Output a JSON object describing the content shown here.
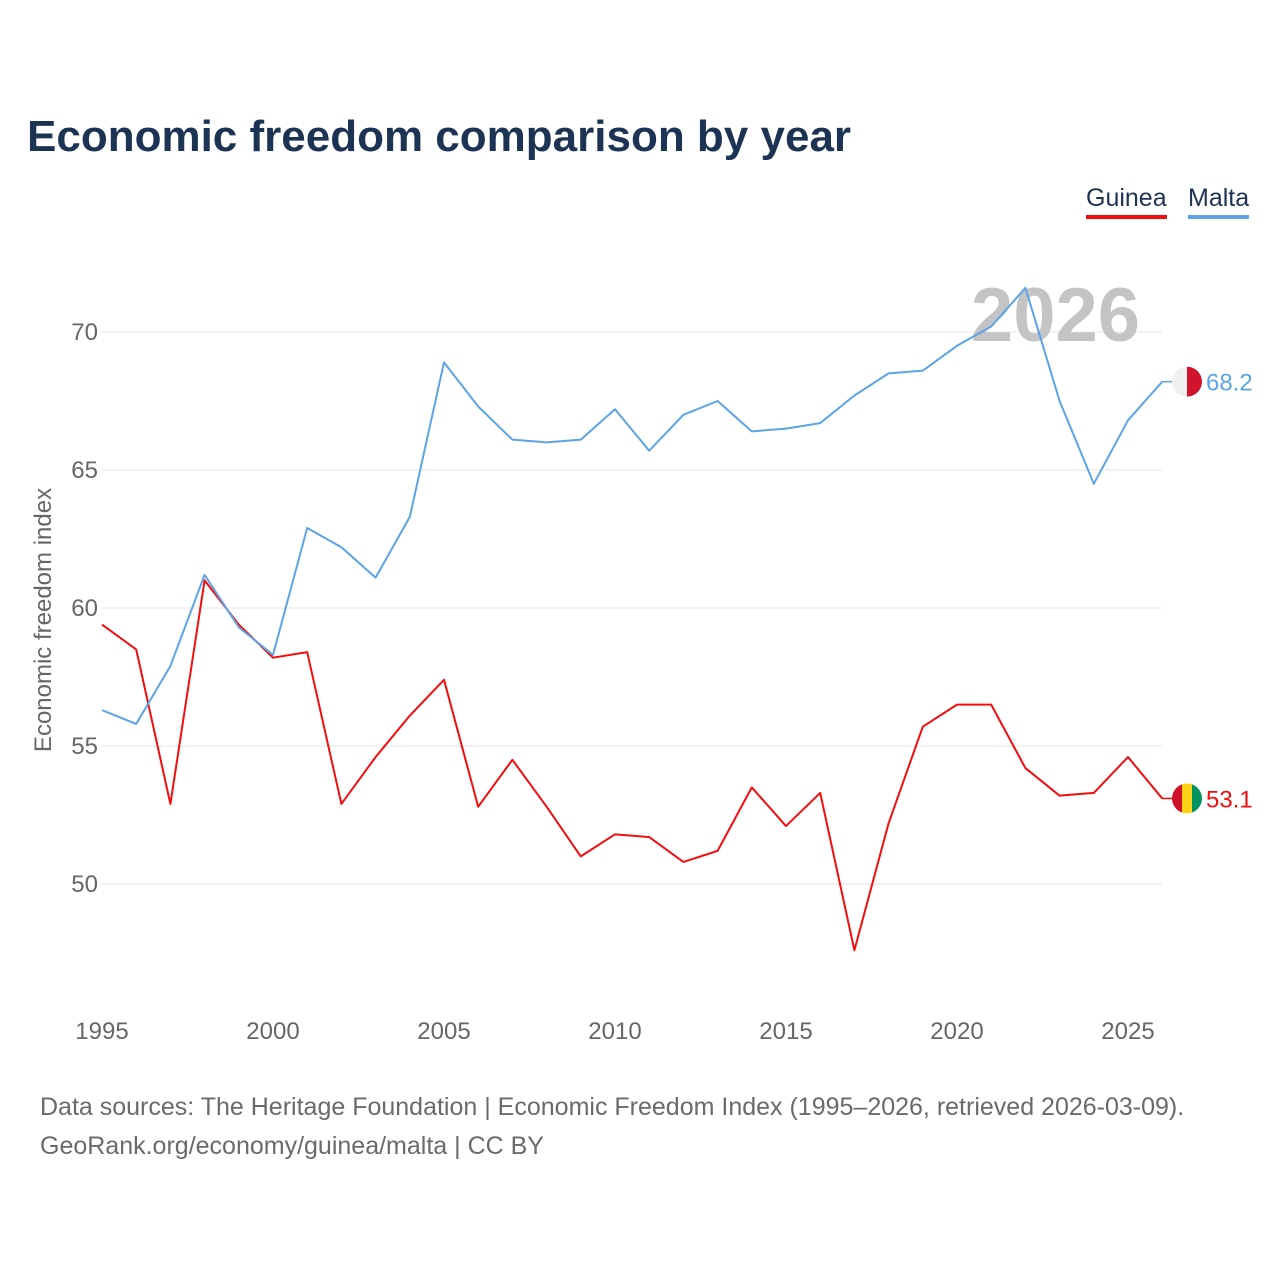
{
  "title": "Economic freedom comparison by year",
  "legend": [
    {
      "label": "Guinea",
      "color": "#f50d0d"
    },
    {
      "label": "Malta",
      "color": "#5ba4e8"
    }
  ],
  "source_line1": "Data sources: The Heritage Foundation | Economic Freedom Index (1995–2026, retrieved 2026-03-09).",
  "source_line2": "GeoRank.org/economy/guinea/malta | CC BY",
  "chart_data": {
    "type": "line",
    "title": "Economic freedom comparison by year",
    "xlabel": "",
    "ylabel": "Economic freedom index",
    "year_watermark": "2026",
    "xlim": [
      1995,
      2026
    ],
    "ylim": [
      46,
      72.5
    ],
    "x_ticks": [
      1995,
      2000,
      2005,
      2010,
      2015,
      2020,
      2025
    ],
    "y_ticks": [
      50,
      55,
      60,
      65,
      70
    ],
    "grid": true,
    "legend_position": "top-right",
    "x": [
      1995,
      1996,
      1997,
      1998,
      1999,
      2000,
      2001,
      2002,
      2003,
      2004,
      2005,
      2006,
      2007,
      2008,
      2009,
      2010,
      2011,
      2012,
      2013,
      2014,
      2015,
      2016,
      2017,
      2018,
      2019,
      2020,
      2021,
      2022,
      2023,
      2024,
      2025,
      2026
    ],
    "series": [
      {
        "name": "Guinea",
        "color": "#f50d0d",
        "end_label": "53.1",
        "values": [
          59.4,
          58.5,
          52.9,
          61.0,
          59.4,
          58.2,
          58.4,
          52.9,
          54.6,
          56.1,
          57.4,
          52.8,
          54.5,
          52.8,
          51.0,
          51.8,
          51.7,
          50.8,
          51.2,
          53.5,
          52.1,
          53.3,
          47.6,
          52.2,
          55.7,
          56.5,
          56.5,
          54.2,
          53.2,
          53.3,
          54.6,
          53.1
        ]
      },
      {
        "name": "Malta",
        "color": "#5ba4e8",
        "end_label": "68.2",
        "values": [
          56.3,
          55.8,
          57.9,
          61.2,
          59.3,
          58.3,
          62.9,
          62.2,
          61.1,
          63.3,
          68.9,
          67.3,
          66.1,
          66.0,
          66.1,
          67.2,
          65.7,
          67.0,
          67.5,
          66.4,
          66.5,
          66.7,
          67.7,
          68.5,
          68.6,
          69.5,
          70.2,
          71.6,
          67.5,
          64.5,
          66.8,
          68.2
        ]
      }
    ]
  }
}
